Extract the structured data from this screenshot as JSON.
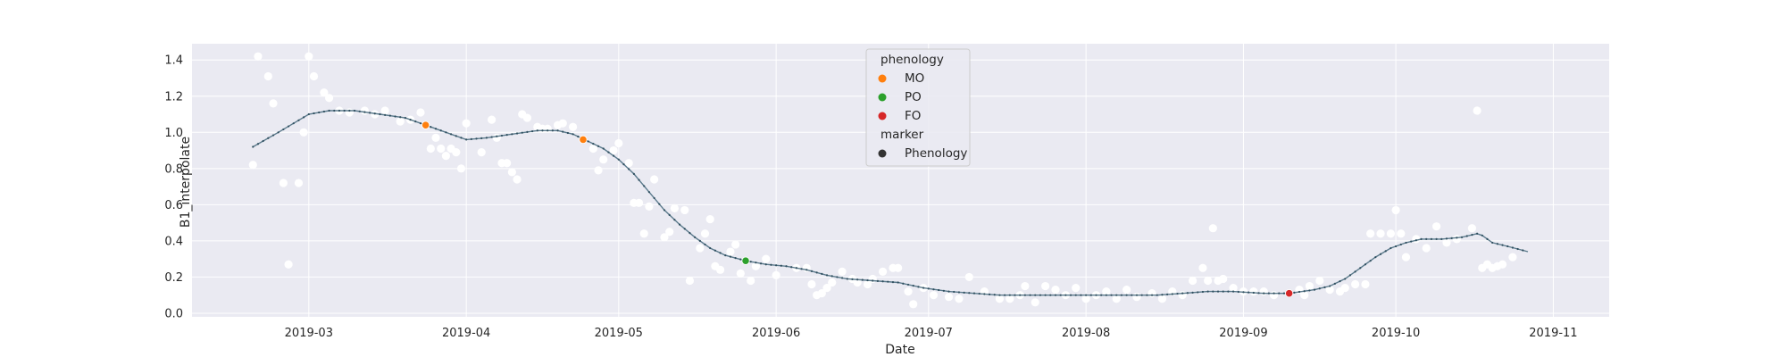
{
  "chart_data": {
    "type": "scatter",
    "xlabel": "Date",
    "ylabel": "B1_interpolate",
    "x_range": [
      "2019-02-06",
      "2019-11-12"
    ],
    "ylim": [
      -0.02,
      1.49
    ],
    "grid": true,
    "legend_position": "top-center",
    "x_ticks": [
      {
        "date": "2019-03-01",
        "label": "2019-03"
      },
      {
        "date": "2019-04-01",
        "label": "2019-04"
      },
      {
        "date": "2019-05-01",
        "label": "2019-05"
      },
      {
        "date": "2019-06-01",
        "label": "2019-06"
      },
      {
        "date": "2019-07-01",
        "label": "2019-07"
      },
      {
        "date": "2019-08-01",
        "label": "2019-08"
      },
      {
        "date": "2019-09-01",
        "label": "2019-09"
      },
      {
        "date": "2019-10-01",
        "label": "2019-10"
      },
      {
        "date": "2019-11-01",
        "label": "2019-11"
      }
    ],
    "y_ticks": [
      {
        "value": 0.0,
        "label": "0.0"
      },
      {
        "value": 0.2,
        "label": "0.2"
      },
      {
        "value": 0.4,
        "label": "0.4"
      },
      {
        "value": 0.6,
        "label": "0.6"
      },
      {
        "value": 0.8,
        "label": "0.8"
      },
      {
        "value": 1.0,
        "label": "1.0"
      },
      {
        "value": 1.2,
        "label": "1.2"
      },
      {
        "value": 1.4,
        "label": "1.4"
      }
    ],
    "raw_points": [
      [
        "2019-02-18",
        0.82
      ],
      [
        "2019-02-19",
        1.42
      ],
      [
        "2019-02-21",
        1.31
      ],
      [
        "2019-02-22",
        1.16
      ],
      [
        "2019-02-24",
        0.72
      ],
      [
        "2019-02-25",
        0.27
      ],
      [
        "2019-02-27",
        0.72
      ],
      [
        "2019-02-28",
        1.0
      ],
      [
        "2019-03-01",
        1.42
      ],
      [
        "2019-03-02",
        1.31
      ],
      [
        "2019-03-04",
        1.22
      ],
      [
        "2019-03-05",
        1.19
      ],
      [
        "2019-03-07",
        1.12
      ],
      [
        "2019-03-09",
        1.11
      ],
      [
        "2019-03-12",
        1.12
      ],
      [
        "2019-03-14",
        1.1
      ],
      [
        "2019-03-16",
        1.12
      ],
      [
        "2019-03-19",
        1.06
      ],
      [
        "2019-03-21",
        1.07
      ],
      [
        "2019-03-23",
        1.11
      ],
      [
        "2019-03-24",
        1.04
      ],
      [
        "2019-03-25",
        0.91
      ],
      [
        "2019-03-26",
        0.97
      ],
      [
        "2019-03-27",
        0.91
      ],
      [
        "2019-03-28",
        0.87
      ],
      [
        "2019-03-29",
        0.91
      ],
      [
        "2019-03-30",
        0.89
      ],
      [
        "2019-03-31",
        0.8
      ],
      [
        "2019-04-01",
        1.05
      ],
      [
        "2019-04-04",
        0.89
      ],
      [
        "2019-04-06",
        1.07
      ],
      [
        "2019-04-07",
        0.97
      ],
      [
        "2019-04-08",
        0.83
      ],
      [
        "2019-04-09",
        0.83
      ],
      [
        "2019-04-10",
        0.78
      ],
      [
        "2019-04-11",
        0.74
      ],
      [
        "2019-04-12",
        1.1
      ],
      [
        "2019-04-13",
        1.08
      ],
      [
        "2019-04-15",
        1.03
      ],
      [
        "2019-04-16",
        1.02
      ],
      [
        "2019-04-17",
        1.02
      ],
      [
        "2019-04-19",
        1.04
      ],
      [
        "2019-04-20",
        1.05
      ],
      [
        "2019-04-22",
        1.03
      ],
      [
        "2019-04-24",
        0.96
      ],
      [
        "2019-04-26",
        0.91
      ],
      [
        "2019-04-27",
        0.79
      ],
      [
        "2019-04-28",
        0.85
      ],
      [
        "2019-04-30",
        0.9
      ],
      [
        "2019-05-01",
        0.94
      ],
      [
        "2019-05-03",
        0.83
      ],
      [
        "2019-05-04",
        0.61
      ],
      [
        "2019-05-05",
        0.61
      ],
      [
        "2019-05-06",
        0.44
      ],
      [
        "2019-05-07",
        0.59
      ],
      [
        "2019-05-08",
        0.74
      ],
      [
        "2019-05-10",
        0.42
      ],
      [
        "2019-05-11",
        0.45
      ],
      [
        "2019-05-12",
        0.58
      ],
      [
        "2019-05-14",
        0.57
      ],
      [
        "2019-05-15",
        0.18
      ],
      [
        "2019-05-17",
        0.36
      ],
      [
        "2019-05-18",
        0.44
      ],
      [
        "2019-05-19",
        0.52
      ],
      [
        "2019-05-20",
        0.26
      ],
      [
        "2019-05-21",
        0.24
      ],
      [
        "2019-05-23",
        0.34
      ],
      [
        "2019-05-24",
        0.38
      ],
      [
        "2019-05-25",
        0.22
      ],
      [
        "2019-05-26",
        0.29
      ],
      [
        "2019-05-27",
        0.18
      ],
      [
        "2019-05-28",
        0.26
      ],
      [
        "2019-05-30",
        0.3
      ],
      [
        "2019-06-01",
        0.21
      ],
      [
        "2019-06-05",
        0.25
      ],
      [
        "2019-06-07",
        0.25
      ],
      [
        "2019-06-08",
        0.16
      ],
      [
        "2019-06-09",
        0.1
      ],
      [
        "2019-06-10",
        0.11
      ],
      [
        "2019-06-11",
        0.14
      ],
      [
        "2019-06-12",
        0.17
      ],
      [
        "2019-06-14",
        0.23
      ],
      [
        "2019-06-16",
        0.19
      ],
      [
        "2019-06-17",
        0.17
      ],
      [
        "2019-06-19",
        0.16
      ],
      [
        "2019-06-20",
        0.19
      ],
      [
        "2019-06-22",
        0.23
      ],
      [
        "2019-06-24",
        0.25
      ],
      [
        "2019-06-25",
        0.25
      ],
      [
        "2019-06-27",
        0.12
      ],
      [
        "2019-06-28",
        0.05
      ],
      [
        "2019-06-30",
        0.14
      ],
      [
        "2019-07-02",
        0.1
      ],
      [
        "2019-07-05",
        0.09
      ],
      [
        "2019-07-07",
        0.08
      ],
      [
        "2019-07-09",
        0.2
      ],
      [
        "2019-07-12",
        0.12
      ],
      [
        "2019-07-15",
        0.08
      ],
      [
        "2019-07-17",
        0.08
      ],
      [
        "2019-07-19",
        0.1
      ],
      [
        "2019-07-20",
        0.15
      ],
      [
        "2019-07-22",
        0.06
      ],
      [
        "2019-07-24",
        0.15
      ],
      [
        "2019-07-26",
        0.13
      ],
      [
        "2019-07-28",
        0.1
      ],
      [
        "2019-07-30",
        0.14
      ],
      [
        "2019-08-01",
        0.08
      ],
      [
        "2019-08-03",
        0.1
      ],
      [
        "2019-08-05",
        0.12
      ],
      [
        "2019-08-07",
        0.08
      ],
      [
        "2019-08-09",
        0.13
      ],
      [
        "2019-08-11",
        0.09
      ],
      [
        "2019-08-14",
        0.11
      ],
      [
        "2019-08-16",
        0.08
      ],
      [
        "2019-08-18",
        0.12
      ],
      [
        "2019-08-20",
        0.1
      ],
      [
        "2019-08-22",
        0.18
      ],
      [
        "2019-08-24",
        0.25
      ],
      [
        "2019-08-25",
        0.18
      ],
      [
        "2019-08-26",
        0.47
      ],
      [
        "2019-08-27",
        0.18
      ],
      [
        "2019-08-28",
        0.19
      ],
      [
        "2019-08-30",
        0.14
      ],
      [
        "2019-09-01",
        0.12
      ],
      [
        "2019-09-03",
        0.12
      ],
      [
        "2019-09-05",
        0.12
      ],
      [
        "2019-09-07",
        0.1
      ],
      [
        "2019-09-12",
        0.13
      ],
      [
        "2019-09-13",
        0.1
      ],
      [
        "2019-09-14",
        0.15
      ],
      [
        "2019-09-16",
        0.18
      ],
      [
        "2019-09-18",
        0.13
      ],
      [
        "2019-09-20",
        0.12
      ],
      [
        "2019-09-21",
        0.14
      ],
      [
        "2019-09-23",
        0.16
      ],
      [
        "2019-09-25",
        0.16
      ],
      [
        "2019-09-26",
        0.44
      ],
      [
        "2019-09-28",
        0.44
      ],
      [
        "2019-09-30",
        0.44
      ],
      [
        "2019-10-01",
        0.57
      ],
      [
        "2019-10-02",
        0.44
      ],
      [
        "2019-10-03",
        0.31
      ],
      [
        "2019-10-05",
        0.41
      ],
      [
        "2019-10-07",
        0.36
      ],
      [
        "2019-10-09",
        0.48
      ],
      [
        "2019-10-11",
        0.39
      ],
      [
        "2019-10-13",
        0.41
      ],
      [
        "2019-10-16",
        0.47
      ],
      [
        "2019-10-17",
        1.12
      ],
      [
        "2019-10-18",
        0.25
      ],
      [
        "2019-10-19",
        0.27
      ],
      [
        "2019-10-20",
        0.25
      ],
      [
        "2019-10-21",
        0.26
      ],
      [
        "2019-10-22",
        0.27
      ],
      [
        "2019-10-24",
        0.31
      ]
    ],
    "smoothed_curve": {
      "color": "#5b7a8c",
      "points": [
        [
          "2019-02-18",
          0.92
        ],
        [
          "2019-02-23",
          1.0
        ],
        [
          "2019-03-01",
          1.1
        ],
        [
          "2019-03-05",
          1.12
        ],
        [
          "2019-03-10",
          1.12
        ],
        [
          "2019-03-15",
          1.1
        ],
        [
          "2019-03-20",
          1.08
        ],
        [
          "2019-03-24",
          1.04
        ],
        [
          "2019-03-28",
          1.0
        ],
        [
          "2019-04-01",
          0.96
        ],
        [
          "2019-04-05",
          0.97
        ],
        [
          "2019-04-10",
          0.99
        ],
        [
          "2019-04-15",
          1.01
        ],
        [
          "2019-04-19",
          1.01
        ],
        [
          "2019-04-22",
          0.99
        ],
        [
          "2019-04-25",
          0.95
        ],
        [
          "2019-04-28",
          0.91
        ],
        [
          "2019-05-01",
          0.85
        ],
        [
          "2019-05-04",
          0.77
        ],
        [
          "2019-05-07",
          0.67
        ],
        [
          "2019-05-10",
          0.57
        ],
        [
          "2019-05-13",
          0.49
        ],
        [
          "2019-05-16",
          0.42
        ],
        [
          "2019-05-19",
          0.36
        ],
        [
          "2019-05-22",
          0.32
        ],
        [
          "2019-05-26",
          0.29
        ],
        [
          "2019-05-30",
          0.27
        ],
        [
          "2019-06-03",
          0.26
        ],
        [
          "2019-06-07",
          0.24
        ],
        [
          "2019-06-11",
          0.21
        ],
        [
          "2019-06-15",
          0.19
        ],
        [
          "2019-06-20",
          0.18
        ],
        [
          "2019-06-25",
          0.17
        ],
        [
          "2019-06-30",
          0.14
        ],
        [
          "2019-07-05",
          0.12
        ],
        [
          "2019-07-10",
          0.11
        ],
        [
          "2019-07-15",
          0.1
        ],
        [
          "2019-07-25",
          0.1
        ],
        [
          "2019-08-05",
          0.1
        ],
        [
          "2019-08-15",
          0.1
        ],
        [
          "2019-08-20",
          0.11
        ],
        [
          "2019-08-25",
          0.12
        ],
        [
          "2019-08-30",
          0.12
        ],
        [
          "2019-09-05",
          0.11
        ],
        [
          "2019-09-10",
          0.11
        ],
        [
          "2019-09-15",
          0.13
        ],
        [
          "2019-09-18",
          0.15
        ],
        [
          "2019-09-21",
          0.19
        ],
        [
          "2019-09-24",
          0.25
        ],
        [
          "2019-09-27",
          0.31
        ],
        [
          "2019-09-30",
          0.36
        ],
        [
          "2019-10-03",
          0.39
        ],
        [
          "2019-10-06",
          0.41
        ],
        [
          "2019-10-10",
          0.41
        ],
        [
          "2019-10-14",
          0.42
        ],
        [
          "2019-10-17",
          0.44
        ],
        [
          "2019-10-18",
          0.43
        ],
        [
          "2019-10-20",
          0.39
        ],
        [
          "2019-10-23",
          0.37
        ],
        [
          "2019-10-27",
          0.34
        ]
      ]
    },
    "phenology_points": [
      {
        "label": "MO",
        "date": "2019-03-24",
        "value": 1.04,
        "color": "#ff7f0e"
      },
      {
        "label": "MO",
        "date": "2019-04-24",
        "value": 0.96,
        "color": "#ff7f0e"
      },
      {
        "label": "PO",
        "date": "2019-05-26",
        "value": 0.29,
        "color": "#2ca02c"
      },
      {
        "label": "FO",
        "date": "2019-09-10",
        "value": 0.11,
        "color": "#d62728"
      }
    ],
    "legend": {
      "title_hue": "phenology",
      "hue_entries": [
        {
          "label": "MO",
          "color": "#ff7f0e"
        },
        {
          "label": "PO",
          "color": "#2ca02c"
        },
        {
          "label": "FO",
          "color": "#d62728"
        }
      ],
      "title_marker": "marker",
      "marker_entries": [
        {
          "label": "Phenology",
          "color": "#333333"
        }
      ]
    },
    "colors": {
      "plot_background": "#eaeaf2",
      "grid": "#ffffff",
      "raw_point": "#ffffff"
    }
  }
}
